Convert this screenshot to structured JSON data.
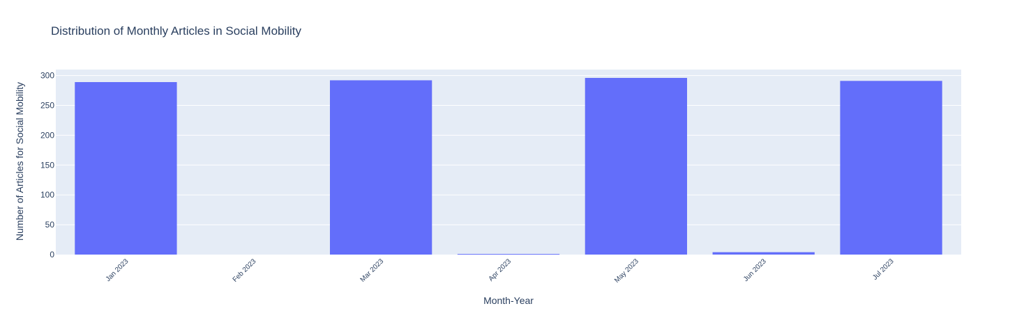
{
  "chart_data": {
    "type": "bar",
    "title": "Distribution of Monthly Articles in Social Mobility",
    "xlabel": "Month-Year",
    "ylabel": "Number of Articles for Social Mobility",
    "categories": [
      "Jan 2023",
      "Feb 2023",
      "Mar 2023",
      "Apr 2023",
      "May 2023",
      "Jun 2023",
      "Jul 2023"
    ],
    "values": [
      289,
      0,
      292,
      1,
      296,
      4,
      291
    ],
    "ylim": [
      0,
      310
    ],
    "yticks": [
      0,
      50,
      100,
      150,
      200,
      250,
      300
    ],
    "grid": true,
    "legend": "none",
    "colors": {
      "bar": "#636efa",
      "plot_bg": "#e5ecf6",
      "grid": "#ffffff",
      "text": "#2a3f5f"
    }
  }
}
